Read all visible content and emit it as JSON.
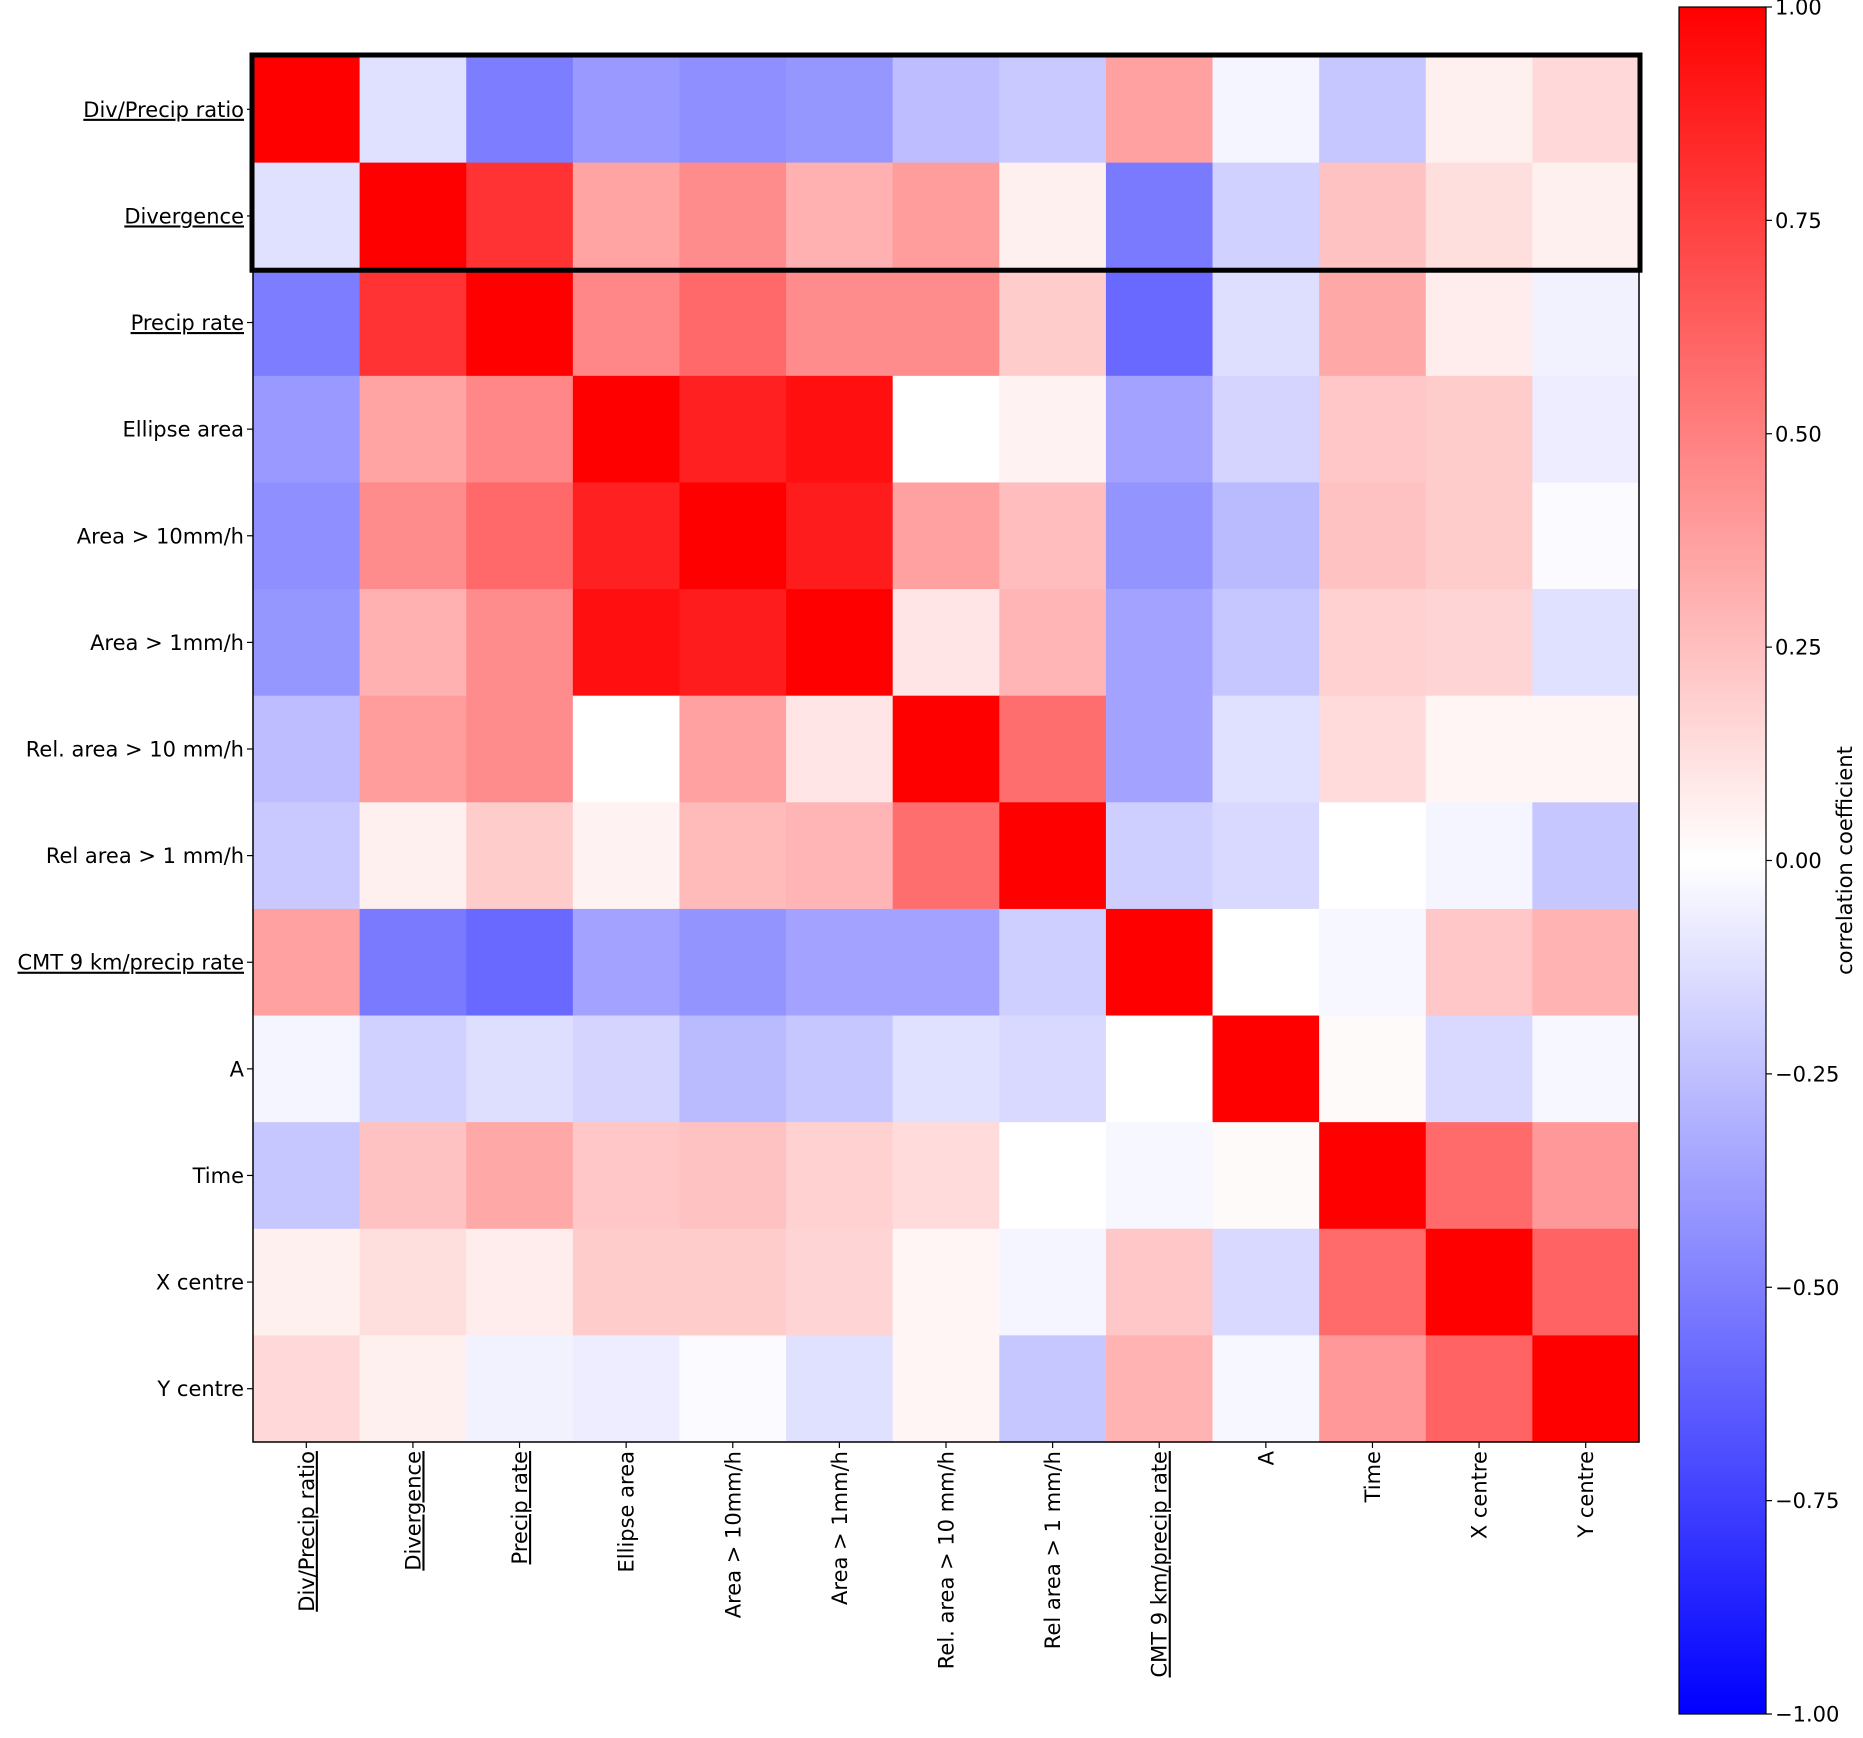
{
  "chart_data": {
    "type": "heatmap",
    "title": "",
    "variables": [
      "Div/Precip ratio",
      "Divergence",
      "Precip rate",
      "Ellipse area",
      "Area > 10mm/h",
      "Area > 1mm/h",
      "Rel. area > 10 mm/h",
      "Rel area > 1 mm/h",
      "CMT 9 km/precip rate",
      "A",
      "Time",
      "X centre",
      "Y centre"
    ],
    "underlined_variables": [
      "Div/Precip ratio",
      "Divergence",
      "Precip rate",
      "CMT 9 km/precip rate"
    ],
    "highlighted_rows": [
      "Div/Precip ratio",
      "Divergence"
    ],
    "matrix": [
      [
        1.0,
        -0.12,
        -0.51,
        -0.4,
        -0.44,
        -0.41,
        -0.26,
        -0.21,
        0.37,
        -0.04,
        -0.22,
        0.06,
        0.15
      ],
      [
        -0.12,
        1.0,
        0.8,
        0.36,
        0.45,
        0.31,
        0.39,
        0.06,
        -0.52,
        -0.18,
        0.24,
        0.13,
        0.06
      ],
      [
        -0.51,
        0.8,
        1.0,
        0.47,
        0.59,
        0.45,
        0.45,
        0.2,
        -0.59,
        -0.13,
        0.34,
        0.07,
        -0.05
      ],
      [
        -0.4,
        0.36,
        0.47,
        1.0,
        0.87,
        0.94,
        0.0,
        0.05,
        -0.36,
        -0.17,
        0.22,
        0.2,
        -0.07
      ],
      [
        -0.44,
        0.45,
        0.59,
        0.87,
        1.0,
        0.89,
        0.37,
        0.26,
        -0.42,
        -0.27,
        0.24,
        0.2,
        -0.02
      ],
      [
        -0.41,
        0.31,
        0.45,
        0.94,
        0.89,
        1.0,
        0.1,
        0.29,
        -0.36,
        -0.22,
        0.18,
        0.17,
        -0.12
      ],
      [
        -0.26,
        0.39,
        0.45,
        0.0,
        0.37,
        0.1,
        1.0,
        0.57,
        -0.36,
        -0.12,
        0.14,
        0.04,
        0.04
      ],
      [
        -0.21,
        0.06,
        0.2,
        0.05,
        0.27,
        0.29,
        0.57,
        1.0,
        -0.19,
        -0.15,
        0.0,
        -0.04,
        -0.22
      ],
      [
        0.37,
        -0.52,
        -0.59,
        -0.36,
        -0.42,
        -0.36,
        -0.36,
        -0.19,
        1.0,
        0.0,
        -0.03,
        0.22,
        0.3
      ],
      [
        -0.04,
        -0.18,
        -0.13,
        -0.17,
        -0.27,
        -0.22,
        -0.12,
        -0.15,
        0.0,
        1.0,
        0.02,
        -0.15,
        -0.03
      ],
      [
        -0.22,
        0.24,
        0.34,
        0.22,
        0.24,
        0.18,
        0.14,
        0.0,
        -0.03,
        0.02,
        1.0,
        0.58,
        0.4
      ],
      [
        0.06,
        0.13,
        0.07,
        0.2,
        0.2,
        0.17,
        0.04,
        -0.04,
        0.22,
        -0.15,
        0.58,
        1.0,
        0.61
      ],
      [
        0.15,
        0.06,
        -0.05,
        -0.07,
        -0.02,
        -0.12,
        0.04,
        -0.22,
        0.3,
        -0.03,
        0.4,
        0.61,
        1.0
      ]
    ],
    "colormap": "bwr",
    "vmin": -1.0,
    "vmax": 1.0,
    "colorbar": {
      "label": "correlation coefficient",
      "ticks": [
        1.0,
        0.75,
        0.5,
        0.25,
        0.0,
        -0.25,
        -0.5,
        -0.75,
        -1.0
      ],
      "tick_labels": [
        "1.00",
        "0.75",
        "0.50",
        "0.25",
        "0.00",
        "−0.25",
        "−0.50",
        "−0.75",
        "−1.00"
      ],
      "placement": "right"
    },
    "colors": {
      "positive": "#ff0000",
      "zero": "#ffffff",
      "negative": "#0000ff",
      "highlight_box": "#000000"
    }
  }
}
